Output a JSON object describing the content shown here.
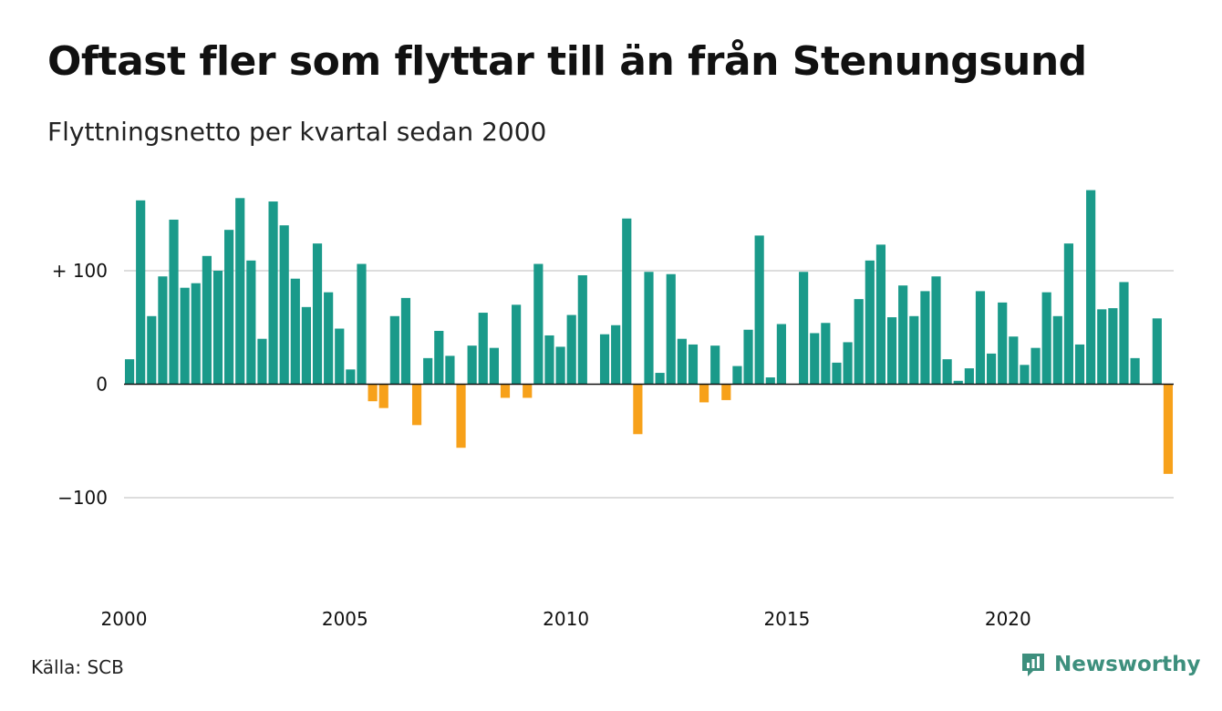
{
  "header": {
    "title": "Oftast fler som flyttar till än från Stenungsund",
    "subtitle": "Flyttningsnetto per kvartal sedan 2000"
  },
  "footer": {
    "source": "Källa: SCB",
    "brand": "Newsworthy",
    "brand_color": "#3d8f7d"
  },
  "chart_data": {
    "type": "bar",
    "title": "Oftast fler som flyttar till än från Stenungsund",
    "subtitle": "Flyttningsnetto per kvartal sedan 2000",
    "x_start_year": 2000,
    "periods_per_year": 4,
    "ylim": [
      -160,
      170
    ],
    "y_ticks": [
      100,
      0,
      -100
    ],
    "y_tick_labels": [
      "+ 100",
      "0",
      "−100"
    ],
    "x_ticks": [
      2000,
      2005,
      2010,
      2015,
      2020
    ],
    "x_tick_labels": [
      "2000",
      "2005",
      "2010",
      "2015",
      "2020"
    ],
    "grid": true,
    "positive_color": "#1a9a8a",
    "negative_color": "#f7a11a",
    "values": [
      22,
      162,
      60,
      95,
      145,
      85,
      89,
      113,
      100,
      136,
      164,
      109,
      40,
      161,
      140,
      93,
      68,
      124,
      81,
      49,
      13,
      106,
      -15,
      -21,
      60,
      76,
      -36,
      23,
      47,
      25,
      -56,
      34,
      63,
      32,
      -12,
      70,
      -12,
      106,
      43,
      33,
      61,
      96,
      0,
      44,
      52,
      146,
      -44,
      99,
      10,
      97,
      40,
      35,
      -16,
      34,
      -14,
      16,
      48,
      131,
      6,
      53,
      0,
      99,
      45,
      54,
      19,
      37,
      75,
      109,
      123,
      59,
      87,
      60,
      82,
      95,
      22,
      3,
      14,
      82,
      27,
      72,
      42,
      17,
      32,
      81,
      60,
      124,
      35,
      171,
      66,
      67,
      90,
      23,
      0,
      58,
      -79
    ]
  }
}
